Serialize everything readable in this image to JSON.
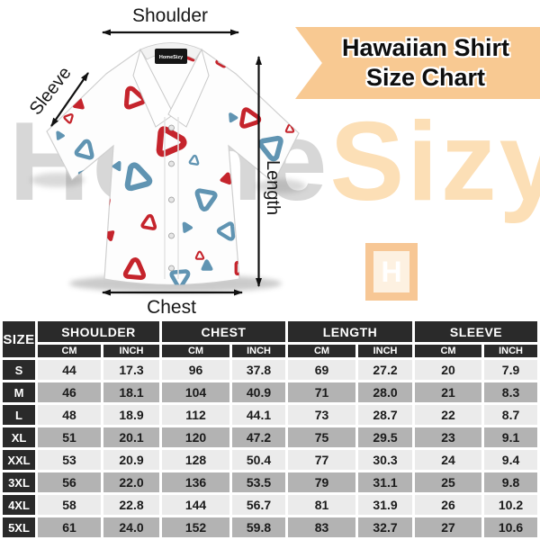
{
  "banner": {
    "line1": "Hawaiian Shirt",
    "line2": "Size Chart",
    "bg_color": "#f8c992"
  },
  "diagram": {
    "labels": {
      "shoulder": "Shoulder",
      "sleeve": "Sleeve",
      "length": "Length",
      "chest": "Chest"
    },
    "collar_tag": "HomeSizy",
    "pattern_colors": {
      "red": "#c5242c",
      "blue": "#6094b2"
    }
  },
  "watermark": {
    "gray_part": "Home",
    "accent_part": "Sizy",
    "logo_letter": "H",
    "gray_color": "#d7d7d7",
    "accent_color": "#fcdfb6"
  },
  "table": {
    "size_header": "SIZE",
    "groups": [
      "SHOULDER",
      "CHEST",
      "LENGTH",
      "SLEEVE"
    ],
    "unit_headers": [
      "CM",
      "INCH"
    ],
    "rows": [
      {
        "size": "S",
        "values": [
          "44",
          "17.3",
          "96",
          "37.8",
          "69",
          "27.2",
          "20",
          "7.9"
        ]
      },
      {
        "size": "M",
        "values": [
          "46",
          "18.1",
          "104",
          "40.9",
          "71",
          "28.0",
          "21",
          "8.3"
        ]
      },
      {
        "size": "L",
        "values": [
          "48",
          "18.9",
          "112",
          "44.1",
          "73",
          "28.7",
          "22",
          "8.7"
        ]
      },
      {
        "size": "XL",
        "values": [
          "51",
          "20.1",
          "120",
          "47.2",
          "75",
          "29.5",
          "23",
          "9.1"
        ]
      },
      {
        "size": "XXL",
        "values": [
          "53",
          "20.9",
          "128",
          "50.4",
          "77",
          "30.3",
          "24",
          "9.4"
        ]
      },
      {
        "size": "3XL",
        "values": [
          "56",
          "22.0",
          "136",
          "53.5",
          "79",
          "31.1",
          "25",
          "9.8"
        ]
      },
      {
        "size": "4XL",
        "values": [
          "58",
          "22.8",
          "144",
          "56.7",
          "81",
          "31.9",
          "26",
          "10.2"
        ]
      },
      {
        "size": "5XL",
        "values": [
          "61",
          "24.0",
          "152",
          "59.8",
          "83",
          "32.7",
          "27",
          "10.6"
        ]
      }
    ],
    "colors": {
      "header_bg": "#2a2a2a",
      "row_light": "#ebebeb",
      "row_mid": "#b3b3b3"
    }
  }
}
